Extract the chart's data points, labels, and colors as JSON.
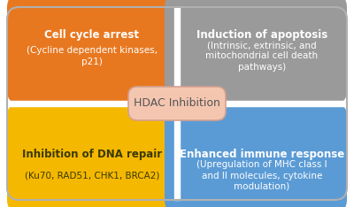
{
  "bg_color": "#ffffff",
  "border_color": "#b0b0b0",
  "quadrants": [
    {
      "label_top": "Cell cycle arrest",
      "label_bot": "(Cycline dependent kinases,\np21)",
      "color": "#e87820",
      "text_color": "#ffffff",
      "pos": "top-left"
    },
    {
      "label_top": "Induction of apoptosis",
      "label_bot": "(Intrinsic, extrinsic, and\nmitochondrial cell death\npathways)",
      "color": "#9a9a9a",
      "text_color": "#ffffff",
      "pos": "top-right"
    },
    {
      "label_top": "Inhibition of DNA repair",
      "label_bot": "(Ku70, RAD51, CHK1, BRCA2)",
      "color": "#f5b800",
      "text_color": "#3a3a00",
      "pos": "bot-left"
    },
    {
      "label_top": "Enhanced immune response",
      "label_bot": "(Upregulation of MHC class I\nand II molecules, cytokine\nmodulation)",
      "color": "#5b9bd5",
      "text_color": "#ffffff",
      "pos": "bot-right"
    }
  ],
  "center_label": "HDAC Inhibition",
  "center_color": "#f4c6b0",
  "center_border_color": "#d4a090",
  "center_text_color": "#555555",
  "font_size_top": 8.5,
  "font_size_bot": 7.5,
  "font_size_center": 9.0,
  "rounding": 0.06
}
